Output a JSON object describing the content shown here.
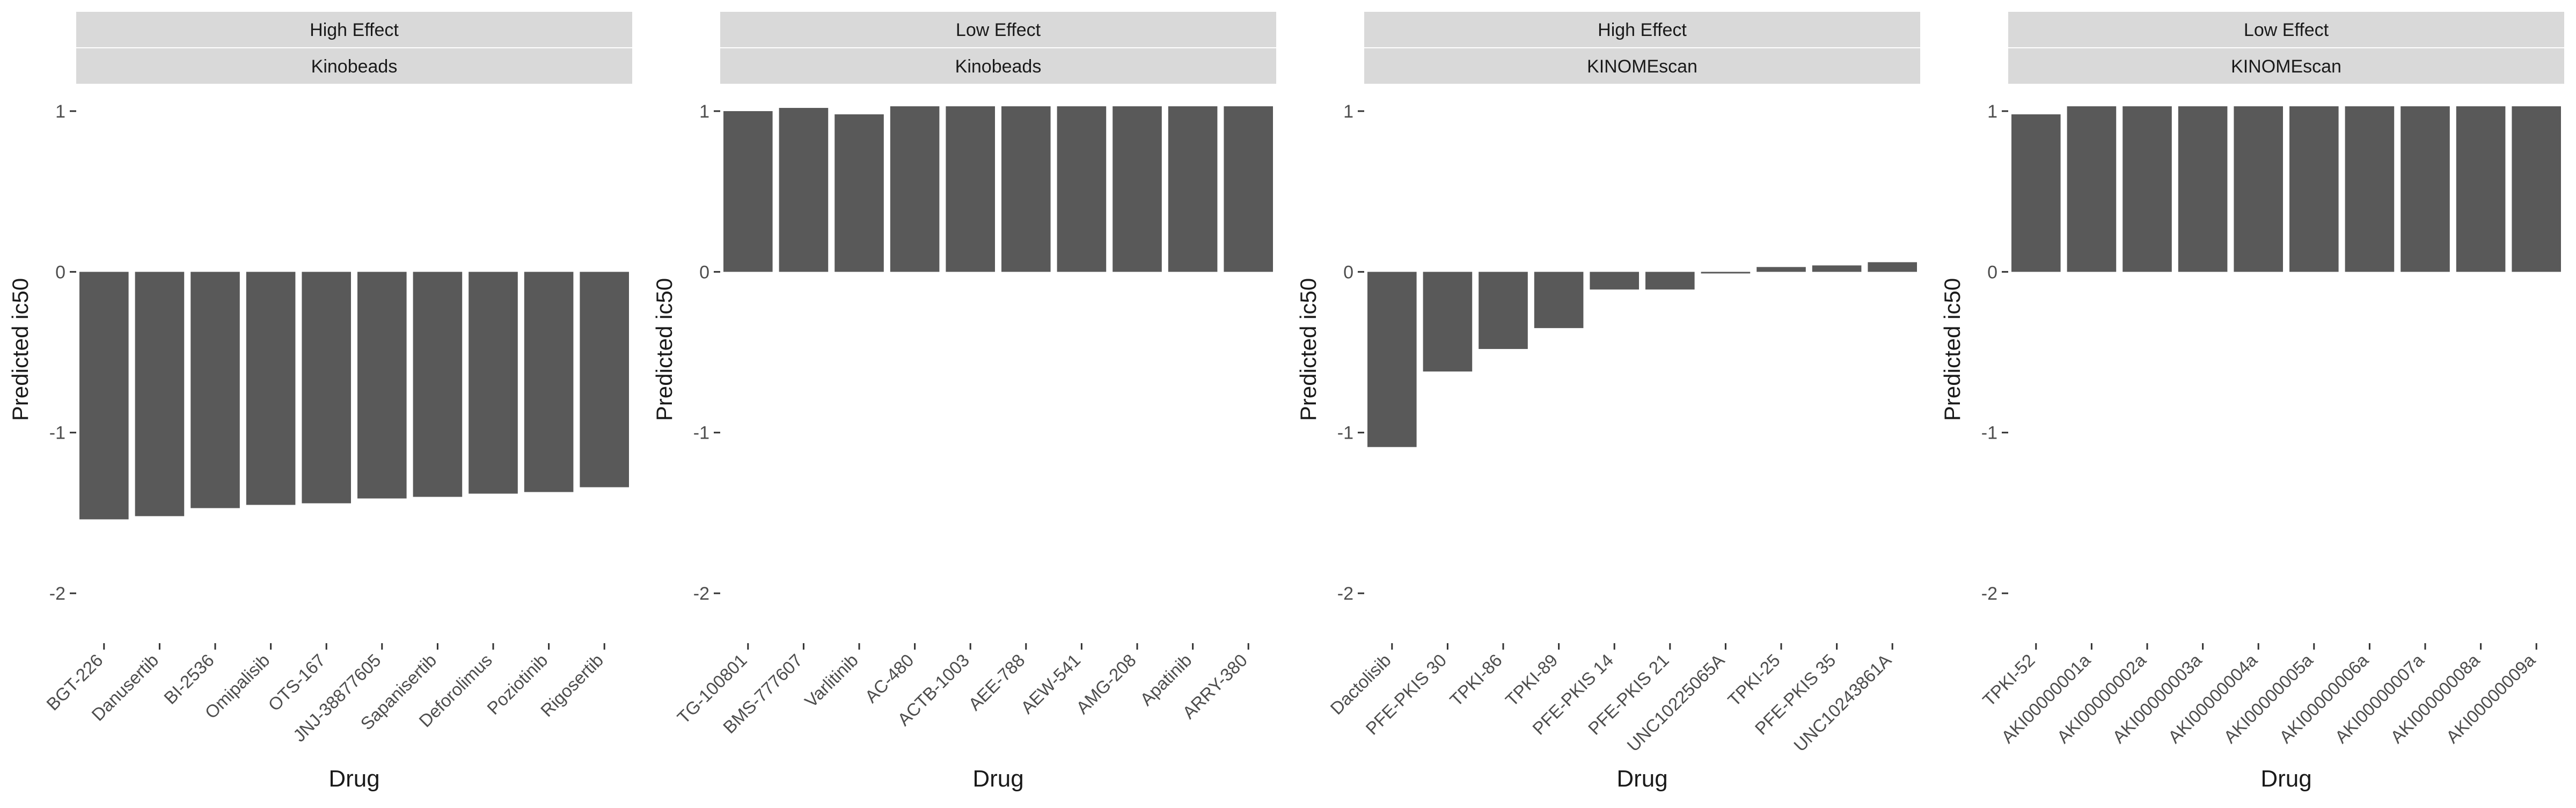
{
  "figure": {
    "ylabel": "Predicted ic50",
    "xlabel": "Drug"
  },
  "colors": {
    "bar": "#595959",
    "strip": "#d9d9d9",
    "axis": "#333333",
    "text": "#1a1a1a",
    "tick_text": "#4d4d4d"
  },
  "chart_data": [
    {
      "type": "bar",
      "strip_top": "High Effect",
      "strip_bottom": "Kinobeads",
      "xlabel": "Drug",
      "ylabel": "Predicted ic50",
      "categories": [
        "BGT-226",
        "Danusertib",
        "BI-2536",
        "Omipalisib",
        "OTS-167",
        "JNJ-38877605",
        "Sapanisertib",
        "Deforolimus",
        "Poziotinib",
        "Rigosertib"
      ],
      "values": [
        -1.54,
        -1.52,
        -1.47,
        -1.45,
        -1.44,
        -1.41,
        -1.4,
        -1.38,
        -1.37,
        -1.34
      ],
      "ylim": [
        -2.15,
        1.05
      ],
      "yticks": [
        -2,
        -1,
        0,
        1
      ],
      "grid": false,
      "legend": "none"
    },
    {
      "type": "bar",
      "strip_top": "Low Effect",
      "strip_bottom": "Kinobeads",
      "xlabel": "Drug",
      "ylabel": "Predicted ic50",
      "categories": [
        "TG-100801",
        "BMS-777607",
        "Varlitinib",
        "AC-480",
        "ACTB-1003",
        "AEE-788",
        "AEW-541",
        "AMG-208",
        "Apatinib",
        "ARRY-380"
      ],
      "values": [
        1.0,
        1.02,
        0.98,
        1.03,
        1.03,
        1.03,
        1.03,
        1.03,
        1.03,
        1.03
      ],
      "ylim": [
        -2.15,
        1.05
      ],
      "yticks": [
        -2,
        -1,
        0,
        1
      ],
      "grid": false,
      "legend": "none"
    },
    {
      "type": "bar",
      "strip_top": "High Effect",
      "strip_bottom": "KINOMEscan",
      "xlabel": "Drug",
      "ylabel": "Predicted ic50",
      "categories": [
        "Dactolisib",
        "PFE-PKIS 30",
        "TPKI-86",
        "TPKI-89",
        "PFE-PKIS 14",
        "PFE-PKIS 21",
        "UNC10225065A",
        "TPKI-25",
        "PFE-PKIS 35",
        "UNC10243861A"
      ],
      "values": [
        -1.09,
        -0.62,
        -0.48,
        -0.35,
        -0.11,
        -0.11,
        -0.01,
        0.03,
        0.04,
        0.06
      ],
      "ylim": [
        -2.15,
        1.05
      ],
      "yticks": [
        -2,
        -1,
        0,
        1
      ],
      "grid": false,
      "legend": "none"
    },
    {
      "type": "bar",
      "strip_top": "Low Effect",
      "strip_bottom": "KINOMEscan",
      "xlabel": "Drug",
      "ylabel": "Predicted ic50",
      "categories": [
        "TPKI-52",
        "AKI00000001a",
        "AKI00000002a",
        "AKI00000003a",
        "AKI00000004a",
        "AKI00000005a",
        "AKI00000006a",
        "AKI00000007a",
        "AKI00000008a",
        "AKI00000009a"
      ],
      "values": [
        0.98,
        1.03,
        1.03,
        1.03,
        1.03,
        1.03,
        1.03,
        1.03,
        1.03,
        1.03
      ],
      "ylim": [
        -2.15,
        1.05
      ],
      "yticks": [
        -2,
        -1,
        0,
        1
      ],
      "grid": false,
      "legend": "none"
    }
  ]
}
